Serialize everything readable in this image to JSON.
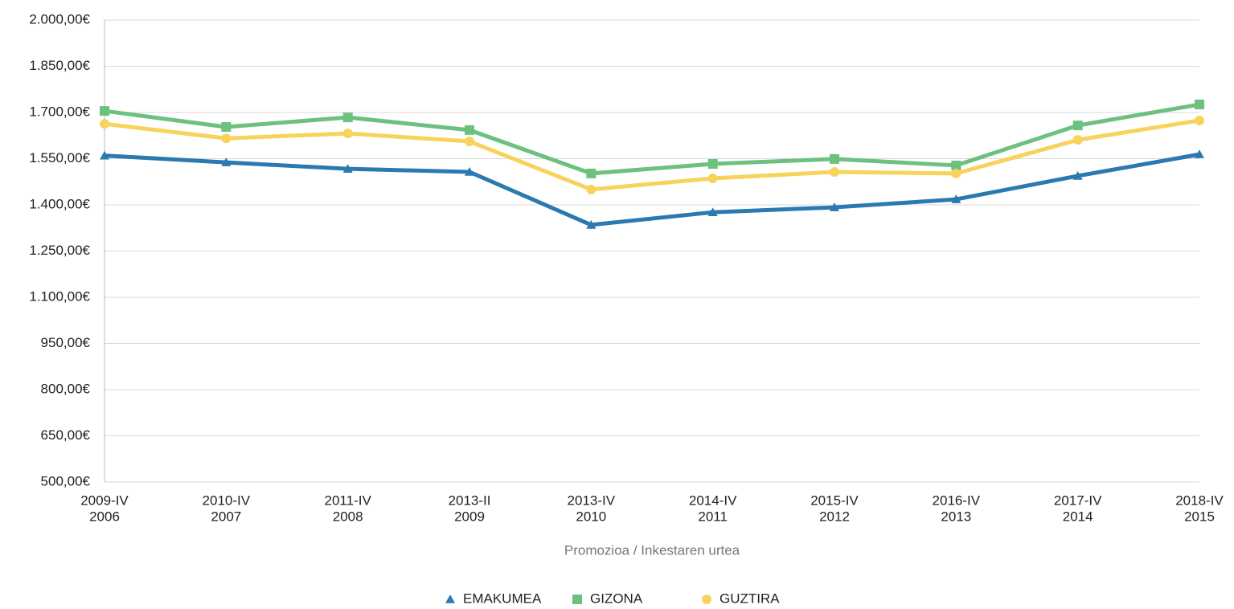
{
  "chart_data": {
    "type": "line",
    "x_label": "Promozioa / Inkestaren urtea",
    "categories": [
      [
        "2009-IV",
        "2006"
      ],
      [
        "2010-IV",
        "2007"
      ],
      [
        "2011-IV",
        "2008"
      ],
      [
        "2013-II",
        "2009"
      ],
      [
        "2013-IV",
        "2010"
      ],
      [
        "2014-IV",
        "2011"
      ],
      [
        "2015-IV",
        "2012"
      ],
      [
        "2016-IV",
        "2013"
      ],
      [
        "2017-IV",
        "2014"
      ],
      [
        "2018-IV",
        "2015"
      ]
    ],
    "series": [
      {
        "name": "EMAKUMEA",
        "color": "#2a7ab0",
        "marker": "triangle",
        "values": [
          1560,
          1538,
          1517,
          1507,
          1335,
          1376,
          1392,
          1418,
          1494,
          1564
        ]
      },
      {
        "name": "GIZONA",
        "color": "#6cc17f",
        "marker": "square",
        "values": [
          1705,
          1653,
          1684,
          1643,
          1502,
          1533,
          1549,
          1528,
          1658,
          1726
        ]
      },
      {
        "name": "GUZTIRA",
        "color": "#f7d35c",
        "marker": "circle",
        "values": [
          1663,
          1616,
          1632,
          1606,
          1450,
          1486,
          1507,
          1502,
          1611,
          1674
        ]
      }
    ],
    "ylim": [
      500,
      2000
    ],
    "yticks": [
      {
        "value": 500,
        "label": "500,00€"
      },
      {
        "value": 650,
        "label": "650,00€"
      },
      {
        "value": 800,
        "label": "800,00€"
      },
      {
        "value": 950,
        "label": "950,00€"
      },
      {
        "value": 1100,
        "label": "1.100,00€"
      },
      {
        "value": 1250,
        "label": "1.250,00€"
      },
      {
        "value": 1400,
        "label": "1.400,00€"
      },
      {
        "value": 1550,
        "label": "1.550,00€"
      },
      {
        "value": 1700,
        "label": "1.700,00€"
      },
      {
        "value": 1850,
        "label": "1.850,00€"
      },
      {
        "value": 2000,
        "label": "2.000,00€"
      }
    ],
    "grid": true,
    "legend": "bottom"
  }
}
